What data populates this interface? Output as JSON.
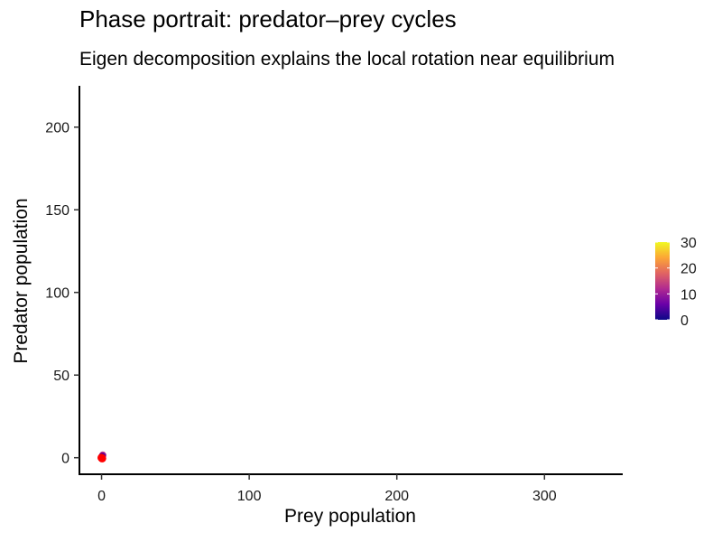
{
  "chart_data": {
    "type": "scatter",
    "title": "Phase portrait: predator–prey cycles",
    "subtitle": "Eigen decomposition explains the local rotation near equilibrium",
    "xlabel": "Prey population",
    "ylabel": "Predator population",
    "xlim": [
      -15,
      353
    ],
    "ylim": [
      -10,
      225
    ],
    "x_ticks": [
      0,
      100,
      200,
      300
    ],
    "y_ticks": [
      0,
      50,
      100,
      150,
      200
    ],
    "grid": false,
    "series": [
      {
        "color_by": "time",
        "points": [
          {
            "x": 0.0,
            "y": 0.0,
            "t": 30
          },
          {
            "x": 0.4,
            "y": 0.8,
            "t": 22
          },
          {
            "x": 0.8,
            "y": 1.6,
            "t": 14
          },
          {
            "x": 0.6,
            "y": 1.0,
            "t": 6
          },
          {
            "x": 0.2,
            "y": 0.4,
            "t": 0
          }
        ]
      }
    ],
    "highlight": {
      "points": [
        {
          "x": 0.0,
          "y": 0.0
        },
        {
          "x": 0.4,
          "y": -0.4
        }
      ],
      "color": "#FF0000"
    },
    "colorbar": {
      "ticks": [
        0,
        10,
        20,
        30
      ],
      "range": [
        0,
        30
      ],
      "palette": [
        "#0D0887",
        "#6A00A8",
        "#B12A90",
        "#E16462",
        "#FCA636",
        "#F0F921"
      ],
      "placement": "right"
    }
  }
}
